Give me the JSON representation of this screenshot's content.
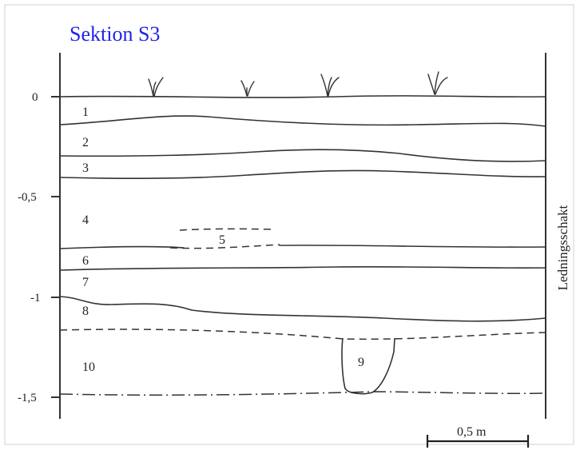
{
  "title": "Sektion S3",
  "depth_ticks": [
    {
      "value": 0,
      "label": "0"
    },
    {
      "value": -0.5,
      "label": "-0,5"
    },
    {
      "value": -1,
      "label": "-1"
    },
    {
      "value": -1.5,
      "label": "-1,5"
    }
  ],
  "layers": [
    "1",
    "2",
    "3",
    "4",
    "5",
    "6",
    "7",
    "8",
    "9",
    "10"
  ],
  "wall_label": "Ledningsschakt",
  "scale_bar_label": "0,5 m",
  "colors": {
    "title": "#2323e6",
    "ink": "#333333"
  }
}
